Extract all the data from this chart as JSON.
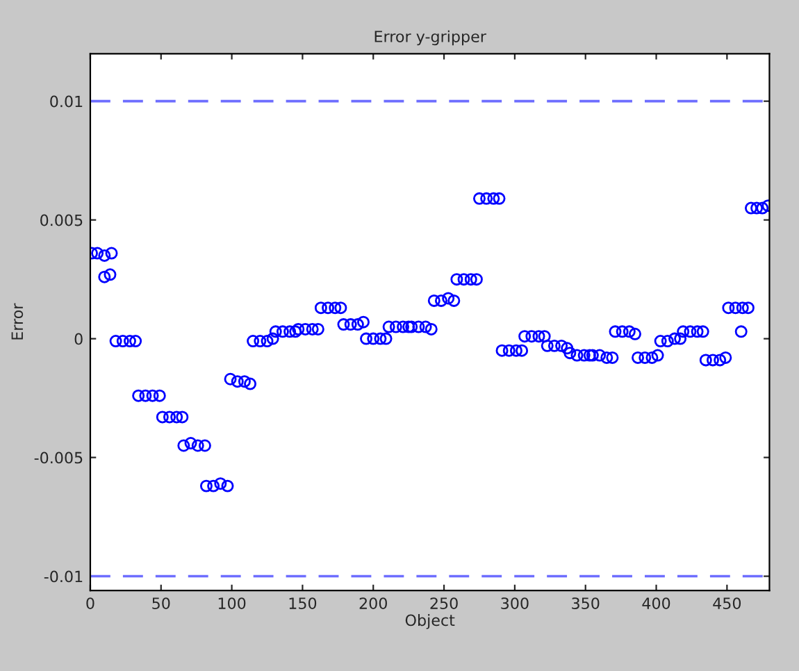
{
  "chart_data": {
    "type": "scatter",
    "title": "Error y-gripper",
    "xlabel": "Object",
    "ylabel": "Error",
    "marker": "circle",
    "x": [
      1,
      5,
      10,
      15,
      10,
      14,
      18,
      23,
      28,
      32,
      34,
      39,
      44,
      49,
      51,
      56,
      61,
      65,
      66,
      71,
      76,
      81,
      82,
      87,
      92,
      97,
      99,
      104,
      109,
      113,
      115,
      120,
      125,
      129,
      131,
      136,
      141,
      145,
      147,
      152,
      157,
      161,
      163,
      168,
      173,
      177,
      179,
      184,
      189,
      193,
      195,
      200,
      205,
      209,
      211,
      216,
      221,
      225,
      227,
      232,
      237,
      241,
      243,
      248,
      253,
      257,
      259,
      264,
      269,
      273,
      275,
      280,
      285,
      289,
      291,
      296,
      301,
      305,
      307,
      312,
      317,
      321,
      323,
      328,
      333,
      337,
      339,
      344,
      349,
      353,
      355,
      360,
      365,
      369,
      371,
      376,
      381,
      385,
      387,
      392,
      397,
      401,
      403,
      408,
      413,
      417,
      419,
      424,
      429,
      433,
      435,
      440,
      445,
      449,
      451,
      456,
      461,
      465,
      460,
      467,
      471,
      475,
      479
    ],
    "series": [
      {
        "color": "#0000ff",
        "values": [
          0.0036,
          0.0036,
          0.0035,
          0.0036,
          0.0026,
          0.0027,
          -0.0001,
          -0.0001,
          -0.0001,
          -0.0001,
          -0.0024,
          -0.0024,
          -0.0024,
          -0.0024,
          -0.0033,
          -0.0033,
          -0.0033,
          -0.0033,
          -0.0045,
          -0.0044,
          -0.0045,
          -0.0045,
          -0.0062,
          -0.0062,
          -0.0061,
          -0.0062,
          -0.0017,
          -0.0018,
          -0.0018,
          -0.0019,
          -0.0001,
          -0.0001,
          -0.0001,
          0.0,
          0.0003,
          0.0003,
          0.0003,
          0.0003,
          0.0004,
          0.0004,
          0.0004,
          0.0004,
          0.0013,
          0.0013,
          0.0013,
          0.0013,
          0.0006,
          0.0006,
          0.0006,
          0.0007,
          0.0,
          0.0,
          0.0,
          0.0,
          0.0005,
          0.0005,
          0.0005,
          0.0005,
          0.0005,
          0.0005,
          0.0005,
          0.0004,
          0.0016,
          0.0016,
          0.0017,
          0.0016,
          0.0025,
          0.0025,
          0.0025,
          0.0025,
          0.0059,
          0.0059,
          0.0059,
          0.0059,
          -0.0005,
          -0.0005,
          -0.0005,
          -0.0005,
          0.0001,
          0.0001,
          0.0001,
          0.0001,
          -0.0003,
          -0.0003,
          -0.0003,
          -0.0004,
          -0.0006,
          -0.0007,
          -0.0007,
          -0.0007,
          -0.0007,
          -0.0007,
          -0.0008,
          -0.0008,
          0.0003,
          0.0003,
          0.0003,
          0.0002,
          -0.0008,
          -0.0008,
          -0.0008,
          -0.0007,
          -0.0001,
          -0.0001,
          0.0,
          0.0,
          0.0003,
          0.0003,
          0.0003,
          0.0003,
          -0.0009,
          -0.0009,
          -0.0009,
          -0.0008,
          0.0013,
          0.0013,
          0.0013,
          0.0013,
          0.0003,
          0.0055,
          0.0055,
          0.0055,
          0.0056
        ]
      }
    ],
    "xlim": [
      0,
      480
    ],
    "ylim": [
      -0.0106,
      0.012
    ],
    "xticks": [
      0,
      50,
      100,
      150,
      200,
      250,
      300,
      350,
      400,
      450
    ],
    "yticks": [
      {
        "value": -0.01,
        "label": "-0.01"
      },
      {
        "value": -0.005,
        "label": "-0.005"
      },
      {
        "value": 0,
        "label": "0"
      },
      {
        "value": 0.005,
        "label": "0.005"
      },
      {
        "value": 0.01,
        "label": "0.01"
      }
    ],
    "ref_lines": [
      {
        "axis": "y",
        "value": 0.01,
        "color": "#6e6eff",
        "line_style": "dashed"
      },
      {
        "axis": "y",
        "value": -0.01,
        "color": "#6e6eff",
        "line_style": "dashed"
      }
    ],
    "grid": false,
    "legend": false
  }
}
